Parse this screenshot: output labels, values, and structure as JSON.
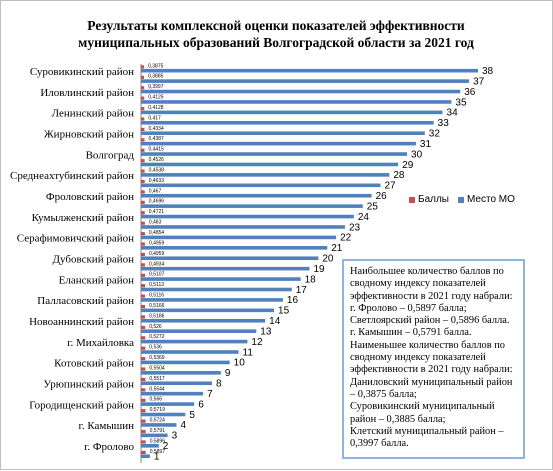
{
  "chart_data": {
    "type": "bar",
    "orientation": "horizontal",
    "title": [
      "Результаты комплексной оценки показателей эффективности",
      "муниципальных образований  Волгоградской области  за 2021 год"
    ],
    "categories": [
      "Суровикинский район",
      "",
      "Иловлинский район",
      "",
      "Ленинский район",
      "",
      "Жирновский район",
      "",
      "Волгоград",
      "",
      "Среднеахтубинский район",
      "",
      "Фроловский район",
      "",
      "Кумылженский район",
      "",
      "Серафимовичский район",
      "",
      "Дубовский район",
      "",
      "Еланский район",
      "",
      "Палласовский район",
      "",
      "Новоаннинский район",
      "",
      "г. Михайловка",
      "",
      "Котовский район",
      "",
      "Урюпинский район",
      "",
      "Городищенский район",
      "",
      "г. Камышин",
      "",
      "г. Фролово",
      ""
    ],
    "series": [
      {
        "name": "Баллы",
        "color": "#c0504d",
        "values": [
          0.3875,
          0.3885,
          0.3997,
          0.4125,
          0.4128,
          0.417,
          0.4334,
          0.4387,
          0.4415,
          0.4526,
          0.4538,
          0.4633,
          0.467,
          0.4696,
          0.4721,
          0.483,
          0.4854,
          0.4959,
          0.4959,
          0.4934,
          0.5107,
          0.5113,
          0.5116,
          0.5166,
          0.5186,
          0.526,
          0.5272,
          0.536,
          0.5369,
          0.5504,
          0.5517,
          0.5544,
          0.566,
          0.5719,
          0.5724,
          0.5791,
          0.5896,
          0.5897
        ],
        "value_labels": [
          "0,3875",
          "0,3885",
          "0,3997",
          "0,4125",
          "0,4128",
          "0,417",
          "0,4334",
          "0,4387",
          "0,4415",
          "0,4526",
          "0,4538",
          "0,4633",
          "0,467",
          "0,4696",
          "0,4721",
          "0,483",
          "0,4854",
          "0,4959",
          "0,4959",
          "0,4934",
          "0,5107",
          "0,5113",
          "0,5116",
          "0,5166",
          "0,5186",
          "0,526",
          "0,5272",
          "0,536",
          "0,5369",
          "0,5504",
          "0,5517",
          "0,5544",
          "0,566",
          "0,5719",
          "0,5724",
          "0,5791",
          "0,5896",
          "0,5897"
        ]
      },
      {
        "name": "Место МО",
        "color": "#4f81bd",
        "values": [
          38,
          37,
          36,
          35,
          34,
          33,
          32,
          31,
          30,
          29,
          28,
          27,
          26,
          25,
          24,
          23,
          22,
          21,
          20,
          19,
          18,
          17,
          16,
          15,
          14,
          13,
          12,
          11,
          10,
          9,
          8,
          7,
          6,
          5,
          4,
          3,
          2,
          1
        ]
      }
    ],
    "xlim": [
      0,
      40
    ],
    "grid": false,
    "legend": "right"
  },
  "note": {
    "lines": [
      "Наибольшее количество баллов по сводному индексу показателей эффективности в 2021 году набрали:",
      "г. Фролово – 0,5897 балла;",
      "Светлоярский район – 0,5896 балла.",
      "г. Камышин – 0,5791 балла.",
      "Наименьшее количество баллов по сводному индексу показателей эффективности в 2021 году набрали:",
      "Даниловский муниципальный район – 0,3875 балла;",
      "Суровикинский муниципальный район – 0,3885 балла;",
      "Клетский муниципальный район – 0,3997 балла."
    ]
  }
}
